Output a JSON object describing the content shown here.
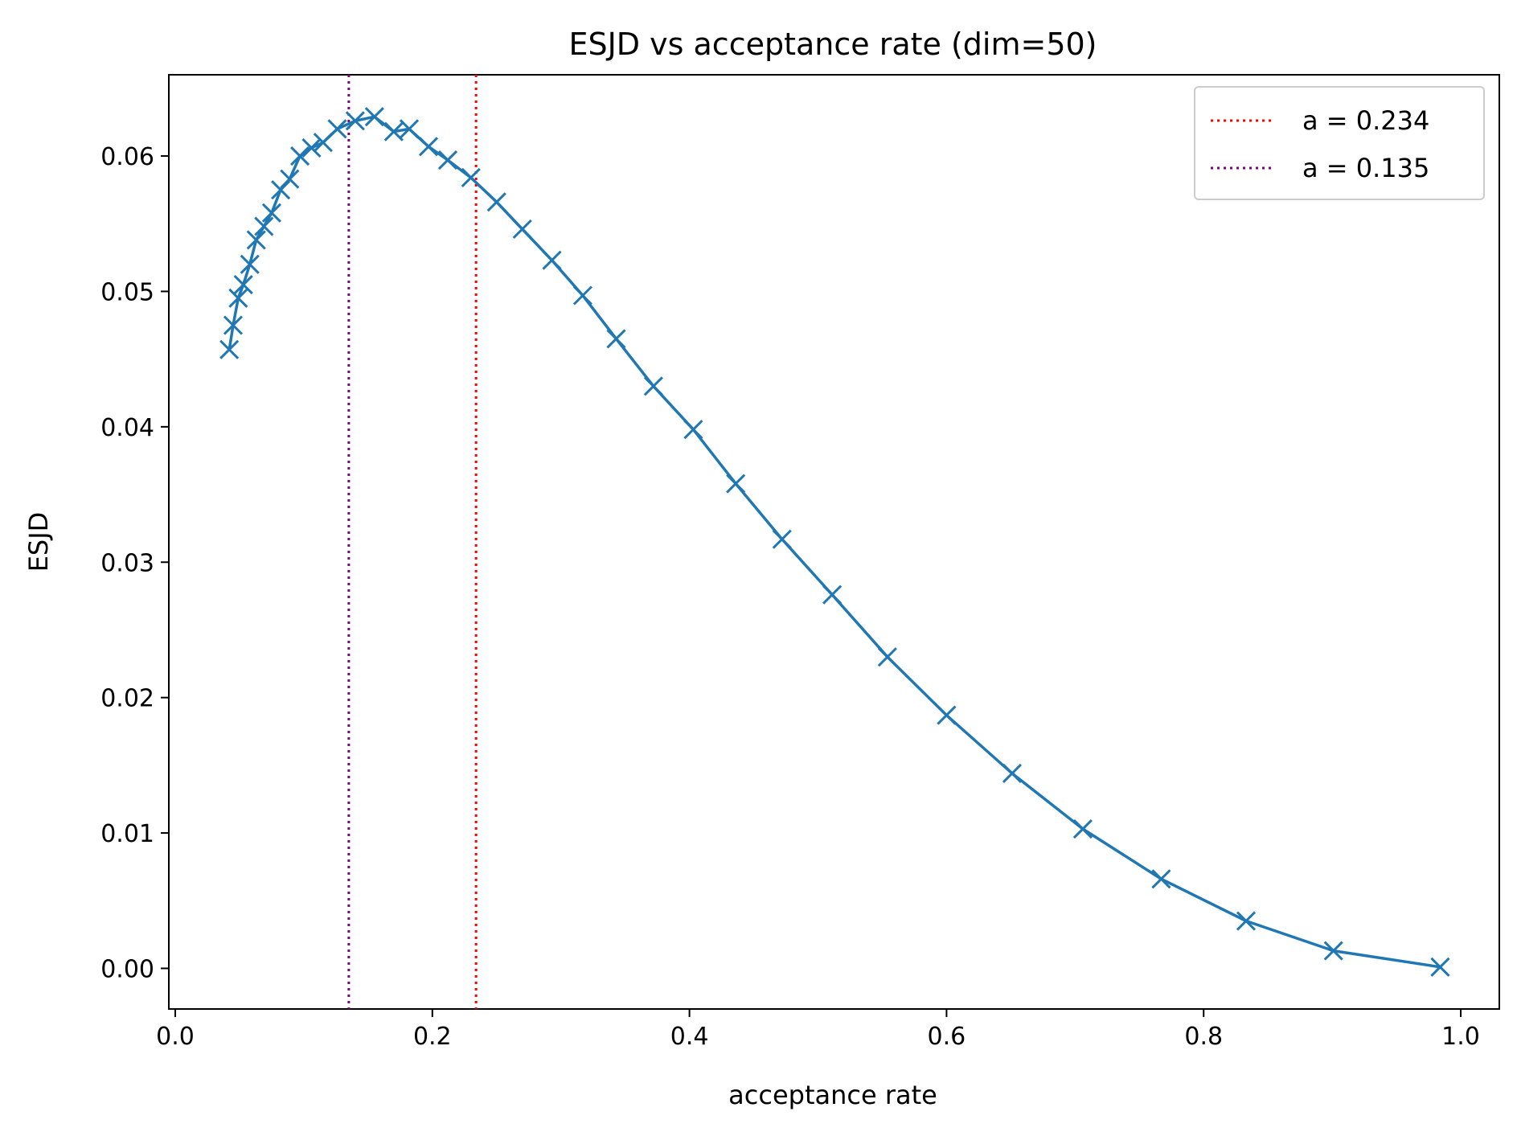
{
  "chart_data": {
    "type": "line",
    "title": "ESJD vs acceptance rate (dim=50)",
    "xlabel": "acceptance rate",
    "ylabel": "ESJD",
    "xlim": [
      -0.005,
      1.03
    ],
    "ylim": [
      -0.003,
      0.066
    ],
    "xticks": [
      0.0,
      0.2,
      0.4,
      0.6,
      0.8,
      1.0
    ],
    "xtick_labels": [
      "0.0",
      "0.2",
      "0.4",
      "0.6",
      "0.8",
      "1.0"
    ],
    "yticks": [
      0.0,
      0.01,
      0.02,
      0.03,
      0.04,
      0.05,
      0.06
    ],
    "ytick_labels": [
      "0.00",
      "0.01",
      "0.02",
      "0.03",
      "0.04",
      "0.05",
      "0.06"
    ],
    "grid": false,
    "series": [
      {
        "name": "ESJD",
        "color": "#1f77b4",
        "marker": "x",
        "x": [
          0.042,
          0.045,
          0.049,
          0.053,
          0.058,
          0.063,
          0.069,
          0.075,
          0.082,
          0.089,
          0.097,
          0.106,
          0.115,
          0.126,
          0.14,
          0.155,
          0.17,
          0.182,
          0.197,
          0.212,
          0.23,
          0.25,
          0.27,
          0.293,
          0.317,
          0.343,
          0.372,
          0.403,
          0.436,
          0.472,
          0.511,
          0.554,
          0.6,
          0.651,
          0.706,
          0.767,
          0.833,
          0.901,
          0.984
        ],
        "y": [
          0.0457,
          0.0475,
          0.0495,
          0.0505,
          0.052,
          0.0538,
          0.0548,
          0.0558,
          0.0575,
          0.0583,
          0.06,
          0.0606,
          0.061,
          0.062,
          0.0626,
          0.0629,
          0.0618,
          0.062,
          0.0607,
          0.0597,
          0.0584,
          0.0566,
          0.0546,
          0.0523,
          0.0497,
          0.0465,
          0.043,
          0.0398,
          0.0358,
          0.0317,
          0.0276,
          0.023,
          0.0187,
          0.0144,
          0.0103,
          0.0066,
          0.0035,
          0.0013,
          0.0001
        ]
      }
    ],
    "vlines": [
      {
        "x": 0.234,
        "label": "a = 0.234",
        "color": "#ff0000",
        "style": "dotted"
      },
      {
        "x": 0.135,
        "label": "a = 0.135",
        "color": "#800080",
        "style": "dotted"
      }
    ],
    "legend": {
      "position": "top-right",
      "entries": [
        "a = 0.234",
        "a = 0.135"
      ]
    }
  }
}
